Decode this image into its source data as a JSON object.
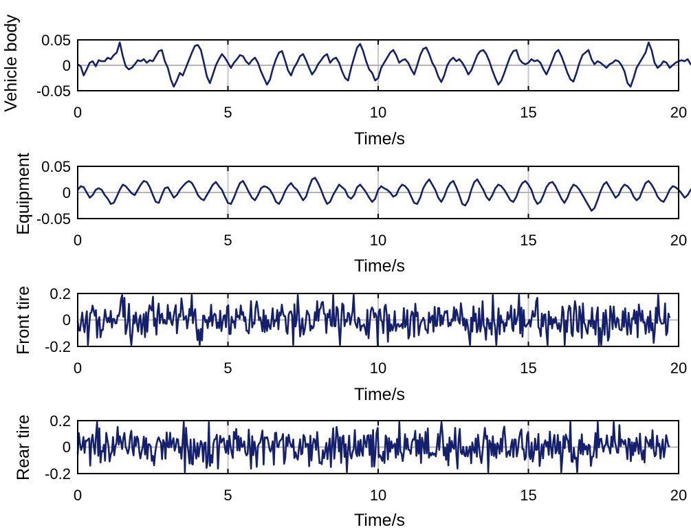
{
  "colors": {
    "line": "#14206e",
    "zero_line": "#b4b4b4",
    "grid": "#c8c8c8",
    "axes": "#000000",
    "background": "#ffffff"
  },
  "chart_data": [
    {
      "type": "line",
      "xlabel": "Time/s",
      "ylabel": "Vehicle body",
      "xlim": [
        0,
        20
      ],
      "ylim": [
        -0.05,
        0.05
      ],
      "xticks": [
        "0",
        "5",
        "10",
        "15",
        "20"
      ],
      "yticks": [
        "0.05",
        "0",
        "-0.05"
      ],
      "grid": "vertical lines at 5, 10, 15; horizontal zero line",
      "x_end": 19.7,
      "x_step": 0.1,
      "y": [
        0.002,
        -0.002,
        -0.02,
        -0.008,
        0.005,
        0.008,
        -0.002,
        0.01,
        0.008,
        0.008,
        0.015,
        0.012,
        0.02,
        0.025,
        0.045,
        0.018,
        -0.002,
        -0.008,
        -0.005,
        0.002,
        0.01,
        0.008,
        0.012,
        0.005,
        0.01,
        0.008,
        0.018,
        0.028,
        0.03,
        0.008,
        -0.005,
        -0.028,
        -0.042,
        -0.03,
        -0.015,
        -0.02,
        -0.005,
        0.01,
        0.025,
        0.038,
        0.04,
        0.03,
        0.005,
        -0.022,
        -0.035,
        -0.018,
        0.0,
        0.012,
        0.022,
        0.015,
        0.005,
        -0.005,
        0.005,
        0.012,
        0.02,
        0.018,
        0.008,
        0.002,
        0.01,
        0.015,
        0.005,
        -0.012,
        -0.025,
        -0.038,
        -0.028,
        -0.005,
        0.012,
        0.025,
        0.028,
        0.01,
        -0.01,
        -0.02,
        -0.005,
        0.005,
        0.018,
        0.022,
        0.01,
        -0.005,
        -0.018,
        -0.01,
        0.002,
        0.01,
        0.018,
        0.022,
        0.005,
        0.012,
        0.015,
        0.005,
        -0.012,
        -0.025,
        -0.03,
        -0.005,
        0.015,
        0.035,
        0.042,
        0.028,
        0.008,
        -0.008,
        -0.015,
        -0.03,
        -0.025,
        -0.005,
        0.005,
        0.015,
        0.025,
        0.03,
        0.02,
        0.005,
        0.01,
        0.012,
        0.005,
        -0.008,
        -0.018,
        0.0,
        0.02,
        0.032,
        0.035,
        0.022,
        0.005,
        -0.005,
        -0.022,
        -0.033,
        -0.02,
        0.0,
        0.01,
        0.015,
        0.008,
        0.012,
        0.005,
        -0.005,
        -0.018,
        -0.01,
        0.005,
        0.02,
        0.028,
        0.03,
        0.022,
        0.008,
        -0.01,
        -0.025,
        -0.038,
        -0.03,
        -0.015,
        0.002,
        0.018,
        0.028,
        0.03,
        0.012,
        0.005,
        0.002,
        0.005,
        0.012,
        0.008,
        0.01,
        0.005,
        -0.008,
        -0.018,
        -0.005,
        0.01,
        0.025,
        0.03,
        0.018,
        0.002,
        -0.015,
        -0.028,
        -0.032,
        -0.015,
        0.005,
        0.02,
        0.025,
        0.03,
        0.012,
        0.002,
        0.008,
        0.005,
        0.0,
        -0.005,
        0.002,
        0.005,
        0.01,
        0.008,
        0.0,
        -0.012,
        -0.035,
        -0.042,
        -0.025,
        -0.005,
        0.005,
        0.015,
        0.025,
        0.045,
        0.03,
        0.005,
        -0.005,
        0.0,
        0.008,
        0.005,
        -0.005,
        0.0,
        0.005,
        0.008,
        0.01,
        0.008,
        0.012,
        0.002,
        0.005,
        -0.008,
        -0.015,
        -0.005,
        0.01,
        0.015,
        0.018,
        0.012,
        0.008,
        0.018,
        0.025,
        0.02,
        0.01,
        0.025,
        0.018,
        0.012,
        -0.005
      ]
    },
    {
      "type": "line",
      "xlabel": "Time/s",
      "ylabel": "Equipment",
      "xlim": [
        0,
        20
      ],
      "ylim": [
        -0.05,
        0.05
      ],
      "xticks": [
        "0",
        "5",
        "10",
        "15",
        "20"
      ],
      "yticks": [
        "0.05",
        "0",
        "-0.05"
      ],
      "grid": "vertical lines at 5, 10, 15; horizontal zero line",
      "x_end": 19.7,
      "x_step": 0.1,
      "y": [
        0.005,
        0.012,
        0.01,
        0.0,
        -0.01,
        -0.005,
        0.005,
        0.008,
        0.005,
        -0.005,
        -0.012,
        -0.022,
        -0.02,
        -0.008,
        0.005,
        0.015,
        0.012,
        0.005,
        -0.002,
        -0.005,
        0.005,
        0.015,
        0.022,
        0.02,
        0.01,
        -0.005,
        -0.018,
        -0.02,
        -0.005,
        0.008,
        0.01,
        0.0,
        -0.01,
        -0.005,
        0.005,
        0.012,
        0.018,
        0.022,
        0.018,
        0.008,
        -0.005,
        -0.012,
        -0.015,
        -0.005,
        0.005,
        0.015,
        0.02,
        0.012,
        0.005,
        -0.008,
        -0.02,
        -0.022,
        -0.01,
        0.005,
        0.018,
        0.022,
        0.012,
        0.0,
        -0.01,
        -0.015,
        -0.005,
        0.008,
        0.012,
        0.01,
        0.005,
        -0.005,
        -0.018,
        -0.022,
        -0.012,
        0.002,
        0.012,
        0.018,
        0.01,
        0.005,
        -0.005,
        -0.015,
        -0.008,
        0.01,
        0.025,
        0.028,
        0.018,
        0.005,
        -0.01,
        -0.022,
        -0.018,
        -0.005,
        0.005,
        0.015,
        0.01,
        0.005,
        -0.008,
        -0.012,
        -0.005,
        0.01,
        0.015,
        0.008,
        0.0,
        -0.01,
        -0.018,
        -0.012,
        0.005,
        0.012,
        0.008,
        0.005,
        0.0,
        -0.008,
        -0.005,
        0.008,
        0.015,
        0.012,
        0.005,
        -0.008,
        -0.02,
        -0.022,
        -0.01,
        0.008,
        0.018,
        0.025,
        0.015,
        0.005,
        -0.01,
        -0.018,
        -0.008,
        0.008,
        0.018,
        0.022,
        0.01,
        -0.005,
        -0.022,
        -0.025,
        -0.015,
        0.005,
        0.02,
        0.025,
        0.015,
        0.005,
        -0.008,
        -0.015,
        -0.005,
        0.008,
        0.015,
        0.012,
        0.005,
        -0.005,
        -0.015,
        -0.018,
        -0.008,
        0.008,
        0.018,
        0.022,
        0.015,
        0.005,
        -0.012,
        -0.022,
        -0.018,
        -0.005,
        0.01,
        0.018,
        0.02,
        0.012,
        0.0,
        -0.012,
        -0.02,
        -0.01,
        0.005,
        0.015,
        0.012,
        0.005,
        -0.005,
        -0.015,
        -0.025,
        -0.035,
        -0.03,
        -0.015,
        0.002,
        0.015,
        0.02,
        0.01,
        0.0,
        -0.01,
        -0.005,
        0.008,
        0.015,
        0.012,
        0.005,
        -0.008,
        -0.015,
        -0.01,
        0.005,
        0.018,
        0.022,
        0.015,
        0.005,
        -0.008,
        -0.015,
        -0.018,
        -0.008,
        0.005,
        0.012,
        0.01,
        0.005,
        -0.002,
        -0.01,
        -0.005,
        0.005,
        0.01,
        0.005,
        -0.005,
        -0.015,
        -0.012,
        0.0,
        0.012,
        0.028,
        0.02,
        0.015
      ]
    },
    {
      "type": "line",
      "xlabel": "Time/s",
      "ylabel": "Front tire",
      "xlim": [
        0,
        20
      ],
      "ylim": [
        -0.2,
        0.2
      ],
      "xticks": [
        "0",
        "5",
        "10",
        "15",
        "20"
      ],
      "yticks": [
        "0.2",
        "0",
        "-0.2"
      ],
      "grid": "vertical lines at 5, 10, 15; horizontal zero line",
      "x_end": 19.7,
      "noise_amplitude": 0.18,
      "noise_points": 520
    },
    {
      "type": "line",
      "xlabel": "Time/s",
      "ylabel": "Rear tire",
      "xlim": [
        0,
        20
      ],
      "ylim": [
        -0.2,
        0.2
      ],
      "xticks": [
        "0",
        "5",
        "10",
        "15",
        "20"
      ],
      "yticks": [
        "0.2",
        "0",
        "-0.2"
      ],
      "grid": "vertical lines at 5, 10, 15; horizontal zero line",
      "x_end": 19.7,
      "noise_amplitude": 0.18,
      "noise_points": 520
    }
  ]
}
